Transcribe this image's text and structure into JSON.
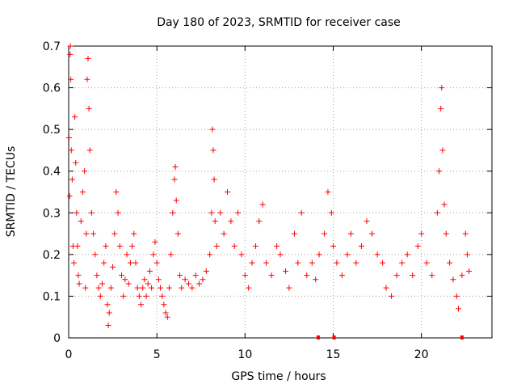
{
  "chart_data": {
    "type": "scatter",
    "title": "Day 180 of 2023, SRMTID for receiver case",
    "xlabel": "GPS time / hours",
    "ylabel": "SRMTID / TECUs",
    "xlim": [
      0,
      24
    ],
    "ylim": [
      0,
      0.7
    ],
    "xticks": [
      0,
      5,
      10,
      15,
      20
    ],
    "xtick_labels": [
      "0",
      "5",
      "10",
      "15",
      "20"
    ],
    "yticks": [
      0,
      0.1,
      0.2,
      0.3,
      0.4,
      0.5,
      0.6,
      0.7
    ],
    "ytick_labels": [
      "0",
      "0.1",
      "0.2",
      "0.3",
      "0.4",
      "0.5",
      "0.6",
      "0.7"
    ],
    "grid": true,
    "marker": "+",
    "series": [
      {
        "name": "SRMTID",
        "color": "#ff0000",
        "points": [
          [
            0.02,
            0.48
          ],
          [
            0.05,
            0.34
          ],
          [
            0.08,
            0.68
          ],
          [
            0.1,
            0.7
          ],
          [
            0.12,
            0.62
          ],
          [
            0.15,
            0.45
          ],
          [
            0.2,
            0.38
          ],
          [
            0.25,
            0.22
          ],
          [
            0.3,
            0.18
          ],
          [
            0.35,
            0.53
          ],
          [
            0.4,
            0.42
          ],
          [
            0.45,
            0.3
          ],
          [
            0.5,
            0.22
          ],
          [
            0.55,
            0.15
          ],
          [
            0.6,
            0.13
          ],
          [
            0.7,
            0.28
          ],
          [
            0.8,
            0.35
          ],
          [
            0.9,
            0.4
          ],
          [
            0.95,
            0.12
          ],
          [
            1.0,
            0.25
          ],
          [
            1.05,
            0.62
          ],
          [
            1.1,
            0.67
          ],
          [
            1.15,
            0.55
          ],
          [
            1.2,
            0.45
          ],
          [
            1.3,
            0.3
          ],
          [
            1.4,
            0.25
          ],
          [
            1.5,
            0.2
          ],
          [
            1.6,
            0.15
          ],
          [
            1.7,
            0.12
          ],
          [
            1.8,
            0.1
          ],
          [
            1.9,
            0.13
          ],
          [
            2.0,
            0.18
          ],
          [
            2.1,
            0.22
          ],
          [
            2.2,
            0.08
          ],
          [
            2.25,
            0.03
          ],
          [
            2.3,
            0.06
          ],
          [
            2.4,
            0.12
          ],
          [
            2.5,
            0.17
          ],
          [
            2.6,
            0.25
          ],
          [
            2.7,
            0.35
          ],
          [
            2.8,
            0.3
          ],
          [
            2.9,
            0.22
          ],
          [
            3.0,
            0.15
          ],
          [
            3.1,
            0.1
          ],
          [
            3.2,
            0.14
          ],
          [
            3.3,
            0.2
          ],
          [
            3.4,
            0.13
          ],
          [
            3.5,
            0.18
          ],
          [
            3.6,
            0.22
          ],
          [
            3.7,
            0.25
          ],
          [
            3.8,
            0.18
          ],
          [
            3.9,
            0.12
          ],
          [
            4.0,
            0.1
          ],
          [
            4.1,
            0.08
          ],
          [
            4.2,
            0.12
          ],
          [
            4.3,
            0.14
          ],
          [
            4.4,
            0.1
          ],
          [
            4.5,
            0.13
          ],
          [
            4.6,
            0.16
          ],
          [
            4.7,
            0.12
          ],
          [
            4.8,
            0.2
          ],
          [
            4.9,
            0.23
          ],
          [
            5.0,
            0.18
          ],
          [
            5.1,
            0.14
          ],
          [
            5.2,
            0.12
          ],
          [
            5.3,
            0.1
          ],
          [
            5.4,
            0.08
          ],
          [
            5.5,
            0.06
          ],
          [
            5.6,
            0.05
          ],
          [
            5.7,
            0.12
          ],
          [
            5.8,
            0.2
          ],
          [
            5.9,
            0.3
          ],
          [
            6.0,
            0.38
          ],
          [
            6.05,
            0.41
          ],
          [
            6.1,
            0.33
          ],
          [
            6.2,
            0.25
          ],
          [
            6.3,
            0.15
          ],
          [
            6.4,
            0.12
          ],
          [
            6.6,
            0.14
          ],
          [
            6.8,
            0.13
          ],
          [
            7.0,
            0.12
          ],
          [
            7.2,
            0.15
          ],
          [
            7.4,
            0.13
          ],
          [
            7.6,
            0.14
          ],
          [
            7.8,
            0.16
          ],
          [
            8.0,
            0.2
          ],
          [
            8.1,
            0.3
          ],
          [
            8.15,
            0.5
          ],
          [
            8.2,
            0.45
          ],
          [
            8.25,
            0.38
          ],
          [
            8.3,
            0.28
          ],
          [
            8.4,
            0.22
          ],
          [
            8.6,
            0.3
          ],
          [
            8.8,
            0.25
          ],
          [
            9.0,
            0.35
          ],
          [
            9.2,
            0.28
          ],
          [
            9.4,
            0.22
          ],
          [
            9.6,
            0.3
          ],
          [
            9.8,
            0.2
          ],
          [
            10.0,
            0.15
          ],
          [
            10.2,
            0.12
          ],
          [
            10.4,
            0.18
          ],
          [
            10.6,
            0.22
          ],
          [
            10.8,
            0.28
          ],
          [
            11.0,
            0.32
          ],
          [
            11.2,
            0.18
          ],
          [
            11.5,
            0.15
          ],
          [
            11.8,
            0.22
          ],
          [
            12.0,
            0.2
          ],
          [
            12.3,
            0.16
          ],
          [
            12.5,
            0.12
          ],
          [
            12.8,
            0.25
          ],
          [
            13.0,
            0.18
          ],
          [
            13.2,
            0.3
          ],
          [
            13.5,
            0.15
          ],
          [
            13.8,
            0.18
          ],
          [
            14.0,
            0.14
          ],
          [
            14.2,
            0.2
          ],
          [
            14.5,
            0.25
          ],
          [
            14.7,
            0.35
          ],
          [
            14.9,
            0.3
          ],
          [
            15.0,
            0.22
          ],
          [
            15.2,
            0.18
          ],
          [
            15.5,
            0.15
          ],
          [
            15.8,
            0.2
          ],
          [
            16.0,
            0.25
          ],
          [
            16.3,
            0.18
          ],
          [
            16.6,
            0.22
          ],
          [
            16.9,
            0.28
          ],
          [
            17.2,
            0.25
          ],
          [
            17.5,
            0.2
          ],
          [
            17.8,
            0.18
          ],
          [
            18.0,
            0.12
          ],
          [
            18.3,
            0.1
          ],
          [
            18.6,
            0.15
          ],
          [
            18.9,
            0.18
          ],
          [
            19.2,
            0.2
          ],
          [
            19.5,
            0.15
          ],
          [
            19.8,
            0.22
          ],
          [
            20.0,
            0.25
          ],
          [
            20.3,
            0.18
          ],
          [
            20.6,
            0.15
          ],
          [
            20.9,
            0.3
          ],
          [
            21.0,
            0.4
          ],
          [
            21.1,
            0.55
          ],
          [
            21.15,
            0.6
          ],
          [
            21.2,
            0.45
          ],
          [
            21.3,
            0.32
          ],
          [
            21.4,
            0.25
          ],
          [
            21.6,
            0.18
          ],
          [
            21.8,
            0.14
          ],
          [
            22.0,
            0.1
          ],
          [
            22.1,
            0.07
          ],
          [
            22.3,
            0.15
          ],
          [
            22.5,
            0.25
          ],
          [
            22.6,
            0.2
          ],
          [
            22.7,
            0.16
          ]
        ]
      }
    ],
    "extra_marks": [
      [
        14.15,
        0
      ],
      [
        15.05,
        0
      ],
      [
        22.3,
        0
      ]
    ]
  }
}
